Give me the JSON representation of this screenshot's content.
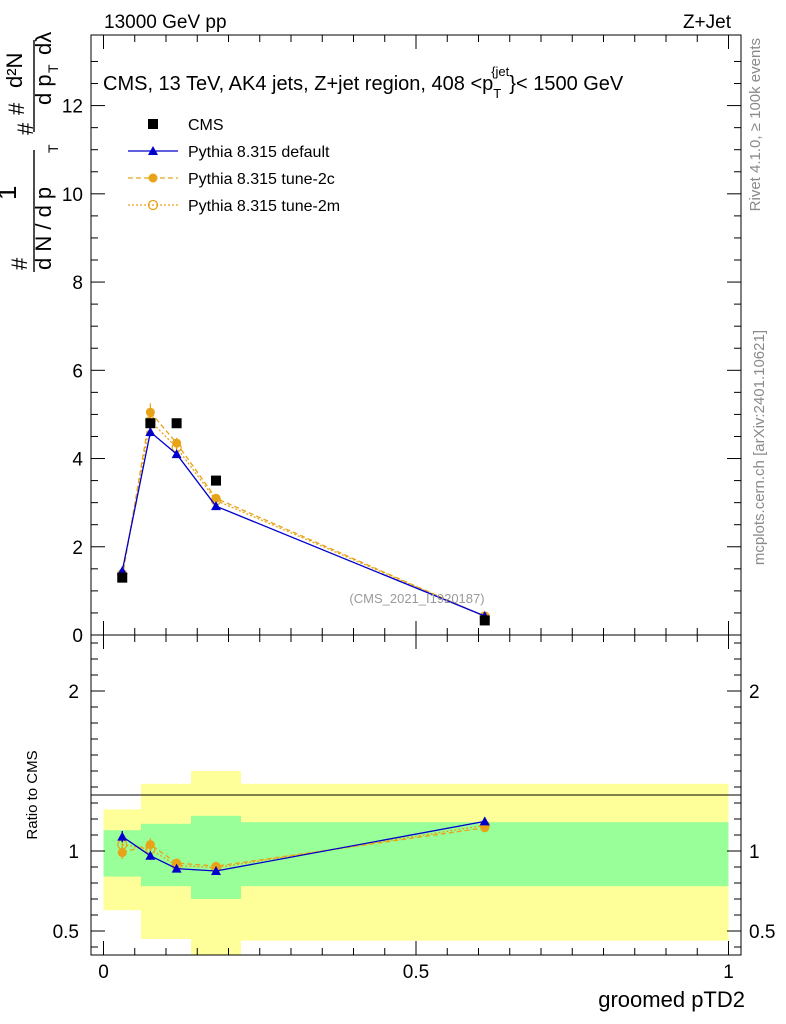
{
  "header": {
    "left": "13000 GeV pp",
    "right": "Z+Jet"
  },
  "side": {
    "rivet": "Rivet 4.1.0, ≥ 100k events",
    "mcplots": "mcplots.cern.ch [arXiv:2401.10621]"
  },
  "chart_data": [
    {
      "type": "scatter",
      "title_parts": {
        "main": "CMS, 13 TeV, AK4 jets, Z+jet region, 408 <p",
        "sup": "{jet",
        "sub": "T",
        "tail": "}< 1500 GeV"
      },
      "ylabel": "1/N dN/dp_T dλ",
      "ylim": [
        0,
        13.6
      ],
      "xlim": [
        -0.02,
        1.02
      ],
      "yticks": [
        0,
        2,
        4,
        6,
        8,
        10,
        12
      ],
      "watermark": "(CMS_2021_I1920187)",
      "legend_position": "top-left",
      "legend": [
        {
          "label": "CMS",
          "marker": "square",
          "color": "#000000"
        },
        {
          "label": "Pythia 8.315 default",
          "marker": "triangle",
          "color": "#0000cc"
        },
        {
          "label": "Pythia 8.315 tune-2c",
          "marker": "circle",
          "color": "#e8a317"
        },
        {
          "label": "Pythia 8.315 tune-2m",
          "marker": "open-circle",
          "color": "#e8a317"
        }
      ],
      "data": {
        "cms": {
          "x": [
            0.03,
            0.075,
            0.117,
            0.18,
            0.61
          ],
          "y": [
            1.3,
            4.8,
            4.8,
            3.5,
            0.33
          ]
        },
        "default": {
          "x": [
            0.03,
            0.075,
            0.117,
            0.18,
            0.61
          ],
          "y": [
            1.45,
            4.6,
            4.1,
            2.92,
            0.43
          ],
          "err": [
            0.08,
            0.1,
            0.08,
            0.05,
            0.03
          ]
        },
        "tune2c": {
          "x": [
            0.03,
            0.075,
            0.117,
            0.18,
            0.61
          ],
          "y": [
            1.3,
            5.05,
            4.35,
            3.1,
            0.42
          ],
          "err": [
            0.08,
            0.2,
            0.12,
            0.06,
            0.03
          ]
        },
        "tune2m": {
          "x": [
            0.03,
            0.075,
            0.117,
            0.18,
            0.61
          ],
          "y": [
            1.38,
            4.85,
            4.25,
            3.05,
            0.42
          ],
          "err": [
            0.08,
            0.15,
            0.1,
            0.06,
            0.03
          ]
        }
      }
    },
    {
      "type": "ratio",
      "ylabel": "Ratio to CMS",
      "ylim": [
        0.35,
        2.35
      ],
      "xlim": [
        -0.02,
        1.02
      ],
      "xlabel": "groomed pTD2",
      "xticks": [
        0,
        0.5,
        1
      ],
      "xtick_labels": [
        "0",
        "0.5",
        "1"
      ],
      "yticks": [
        0.5,
        1,
        2
      ],
      "ytick_labels": [
        "0.5",
        "1",
        "2"
      ],
      "bands": [
        {
          "x0": 0.0,
          "x1": 0.06,
          "green": [
            0.84,
            1.13
          ],
          "yellow": [
            0.63,
            1.26
          ]
        },
        {
          "x0": 0.06,
          "x1": 0.14,
          "green": [
            0.78,
            1.17
          ],
          "yellow": [
            0.45,
            1.42
          ]
        },
        {
          "x0": 0.14,
          "x1": 0.22,
          "green": [
            0.7,
            1.22
          ],
          "yellow": [
            0.35,
            1.5
          ]
        },
        {
          "x0": 0.22,
          "x1": 1.0,
          "green": [
            0.78,
            1.18
          ],
          "yellow": [
            0.44,
            1.42
          ]
        }
      ],
      "data": {
        "default": {
          "x": [
            0.03,
            0.075,
            0.117,
            0.18,
            0.61
          ],
          "y": [
            1.09,
            0.97,
            0.89,
            0.875,
            1.185
          ],
          "err": [
            0.035,
            0.025,
            0.015,
            0.015,
            0.02
          ]
        },
        "tune2c": {
          "x": [
            0.03,
            0.075,
            0.117,
            0.18,
            0.61
          ],
          "y": [
            0.99,
            1.04,
            0.925,
            0.905,
            1.145
          ],
          "err": [
            0.04,
            0.04,
            0.02,
            0.02,
            0.015
          ]
        },
        "tune2m": {
          "x": [
            0.03,
            0.075,
            0.117,
            0.18,
            0.61
          ],
          "y": [
            1.04,
            1.01,
            0.91,
            0.895,
            1.16
          ],
          "err": [
            0.04,
            0.035,
            0.02,
            0.015,
            0.015
          ]
        }
      }
    }
  ]
}
